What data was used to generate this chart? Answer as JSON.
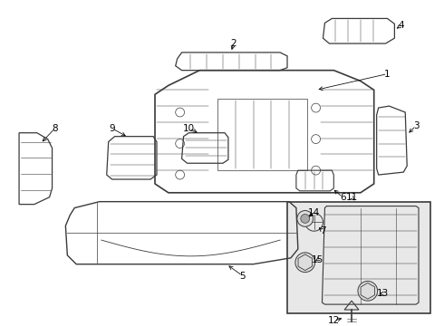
{
  "bg_color": "#ffffff",
  "line_color": "#3a3a3a",
  "label_color": "#000000",
  "box_fill": "#e8e8e8",
  "fig_width": 4.9,
  "fig_height": 3.6,
  "dpi": 100
}
